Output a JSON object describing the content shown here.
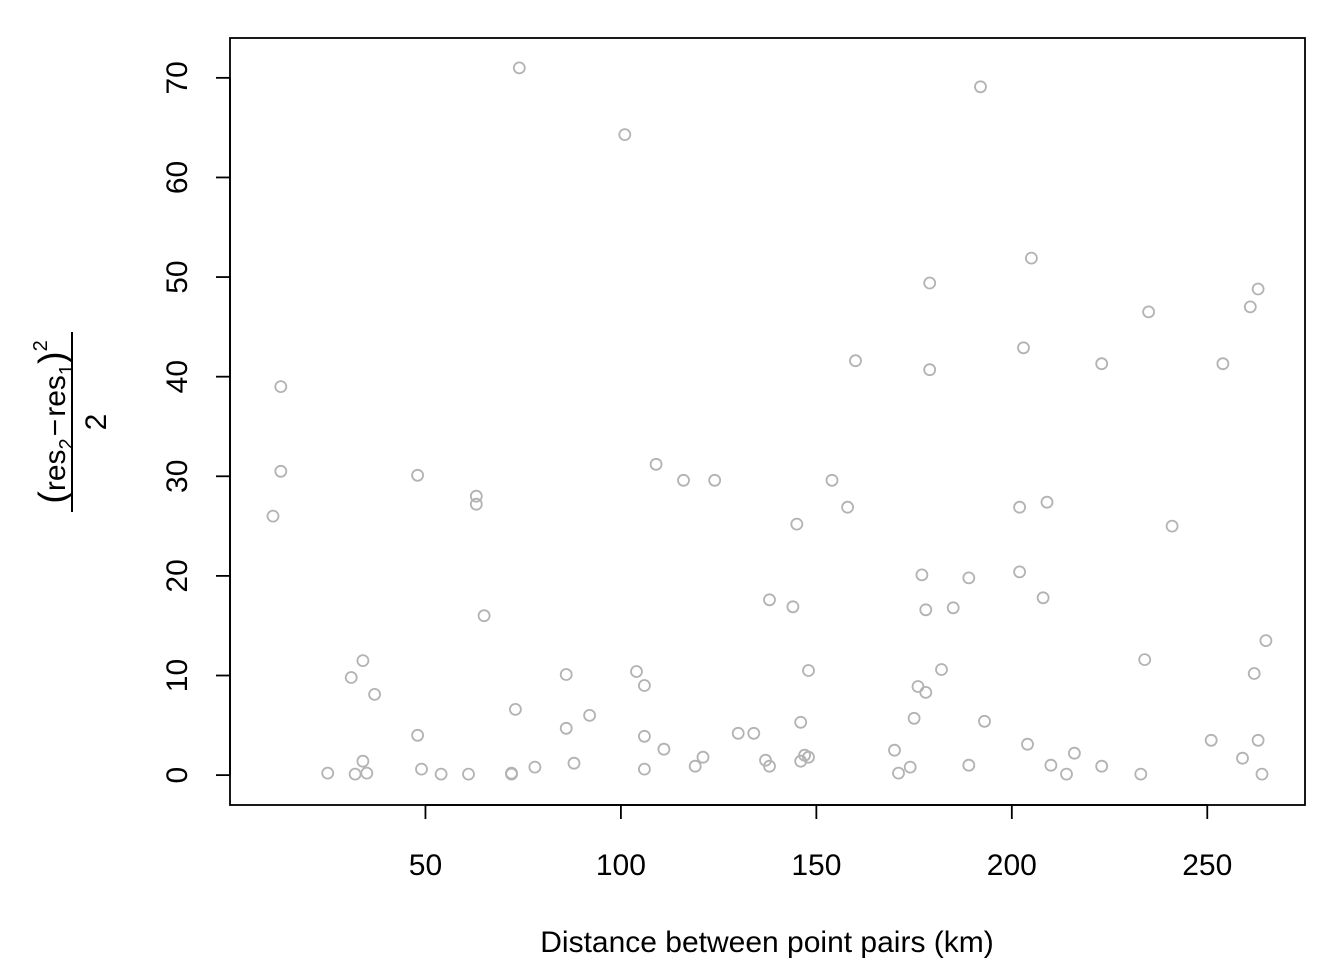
{
  "chart_data": {
    "type": "scatter",
    "title": "",
    "xlabel": "Distance between point pairs (km)",
    "ylabel": {
      "open": "(",
      "res": "res",
      "sub2": "2",
      "minus": "−",
      "sub1": "1",
      "close": ")",
      "power": "2",
      "denominator": "2"
    },
    "xlim": [
      0,
      275
    ],
    "ylim": [
      -3,
      74
    ],
    "xticks": [
      50,
      100,
      150,
      200,
      250
    ],
    "yticks": [
      0,
      10,
      20,
      30,
      40,
      50,
      60,
      70
    ],
    "marker_color": "#b3b3b3",
    "grid": false,
    "points": [
      [
        11,
        26
      ],
      [
        13,
        39
      ],
      [
        13,
        30.5
      ],
      [
        25,
        0.2
      ],
      [
        31,
        9.8
      ],
      [
        32,
        0.1
      ],
      [
        34,
        11.5
      ],
      [
        34,
        1.4
      ],
      [
        35,
        0.2
      ],
      [
        37,
        8.1
      ],
      [
        48,
        30.1
      ],
      [
        48,
        4
      ],
      [
        49,
        0.6
      ],
      [
        54,
        0.1
      ],
      [
        61,
        0.1
      ],
      [
        63,
        28
      ],
      [
        63,
        27.2
      ],
      [
        65,
        16
      ],
      [
        72,
        0.1
      ],
      [
        72,
        0.2
      ],
      [
        73,
        6.6
      ],
      [
        74,
        71
      ],
      [
        78,
        0.8
      ],
      [
        86,
        10.1
      ],
      [
        86,
        4.7
      ],
      [
        88,
        1.2
      ],
      [
        92,
        6
      ],
      [
        101,
        64.3
      ],
      [
        104,
        10.4
      ],
      [
        106,
        9
      ],
      [
        106,
        0.6
      ],
      [
        106,
        3.9
      ],
      [
        109,
        31.2
      ],
      [
        111,
        2.6
      ],
      [
        116,
        29.6
      ],
      [
        119,
        0.9
      ],
      [
        121,
        1.8
      ],
      [
        124,
        29.6
      ],
      [
        130,
        4.2
      ],
      [
        134,
        4.2
      ],
      [
        137,
        1.5
      ],
      [
        138,
        17.6
      ],
      [
        138,
        0.9
      ],
      [
        144,
        16.9
      ],
      [
        145,
        25.2
      ],
      [
        146,
        1.4
      ],
      [
        146,
        5.3
      ],
      [
        147,
        2
      ],
      [
        148,
        10.5
      ],
      [
        148,
        1.8
      ],
      [
        154,
        29.6
      ],
      [
        158,
        26.9
      ],
      [
        160,
        41.6
      ],
      [
        170,
        2.5
      ],
      [
        171,
        0.2
      ],
      [
        174,
        0.8
      ],
      [
        175,
        5.7
      ],
      [
        176,
        8.9
      ],
      [
        177,
        20.1
      ],
      [
        178,
        8.3
      ],
      [
        178,
        16.6
      ],
      [
        179,
        40.7
      ],
      [
        179,
        49.4
      ],
      [
        182,
        10.6
      ],
      [
        185,
        16.8
      ],
      [
        189,
        19.8
      ],
      [
        189,
        1
      ],
      [
        192,
        69.1
      ],
      [
        193,
        5.4
      ],
      [
        202,
        20.4
      ],
      [
        202,
        26.9
      ],
      [
        203,
        42.9
      ],
      [
        204,
        3.1
      ],
      [
        205,
        51.9
      ],
      [
        208,
        17.8
      ],
      [
        209,
        27.4
      ],
      [
        210,
        1
      ],
      [
        214,
        0.1
      ],
      [
        216,
        2.2
      ],
      [
        223,
        41.3
      ],
      [
        223,
        0.9
      ],
      [
        233,
        0.1
      ],
      [
        234,
        11.6
      ],
      [
        235,
        46.5
      ],
      [
        241,
        25
      ],
      [
        251,
        3.5
      ],
      [
        254,
        41.3
      ],
      [
        259,
        1.7
      ],
      [
        261,
        47
      ],
      [
        262,
        10.2
      ],
      [
        263,
        48.8
      ],
      [
        263,
        3.5
      ],
      [
        264,
        0.1
      ],
      [
        265,
        13.5
      ]
    ]
  }
}
